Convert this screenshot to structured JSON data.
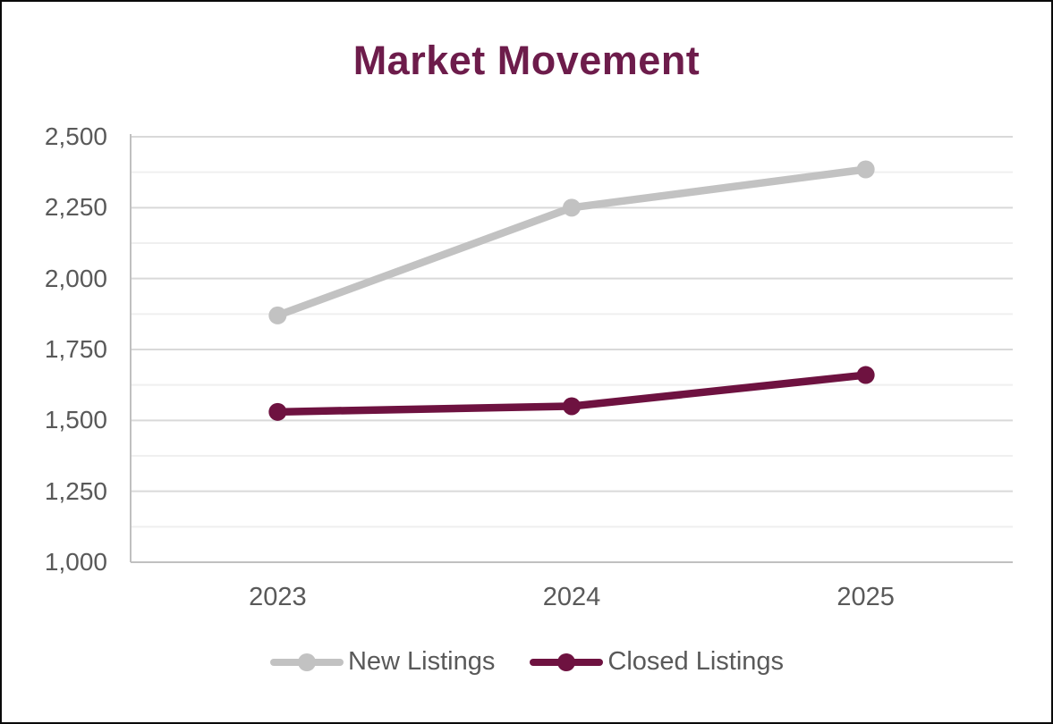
{
  "chart_data": {
    "type": "line",
    "title": "Market Movement",
    "categories": [
      "2023",
      "2024",
      "2025"
    ],
    "series": [
      {
        "name": "New Listings",
        "values": [
          1870,
          2250,
          2385
        ],
        "color": "#C2C2C2"
      },
      {
        "name": "Closed Listings",
        "values": [
          1530,
          1550,
          1660
        ],
        "color": "#6E1240"
      }
    ],
    "xlabel": "",
    "ylabel": "",
    "ylim": [
      1000,
      2500
    ],
    "y_major_step": 250,
    "y_minor_step": 125,
    "y_tick_labels": [
      "1,000",
      "1,250",
      "1,500",
      "1,750",
      "2,000",
      "2,250",
      "2,500"
    ],
    "grid": "horizontal major+minor",
    "legend_position": "bottom",
    "marker": "circle"
  },
  "colors": {
    "title": "#6D1C4B",
    "axis_text": "#595959",
    "major_grid": "#D9D9D9",
    "minor_grid": "#EFEFEF",
    "axis_line": "#C0C0C0",
    "background": "#FFFFFF",
    "frame_border": "#0A0A0A"
  }
}
